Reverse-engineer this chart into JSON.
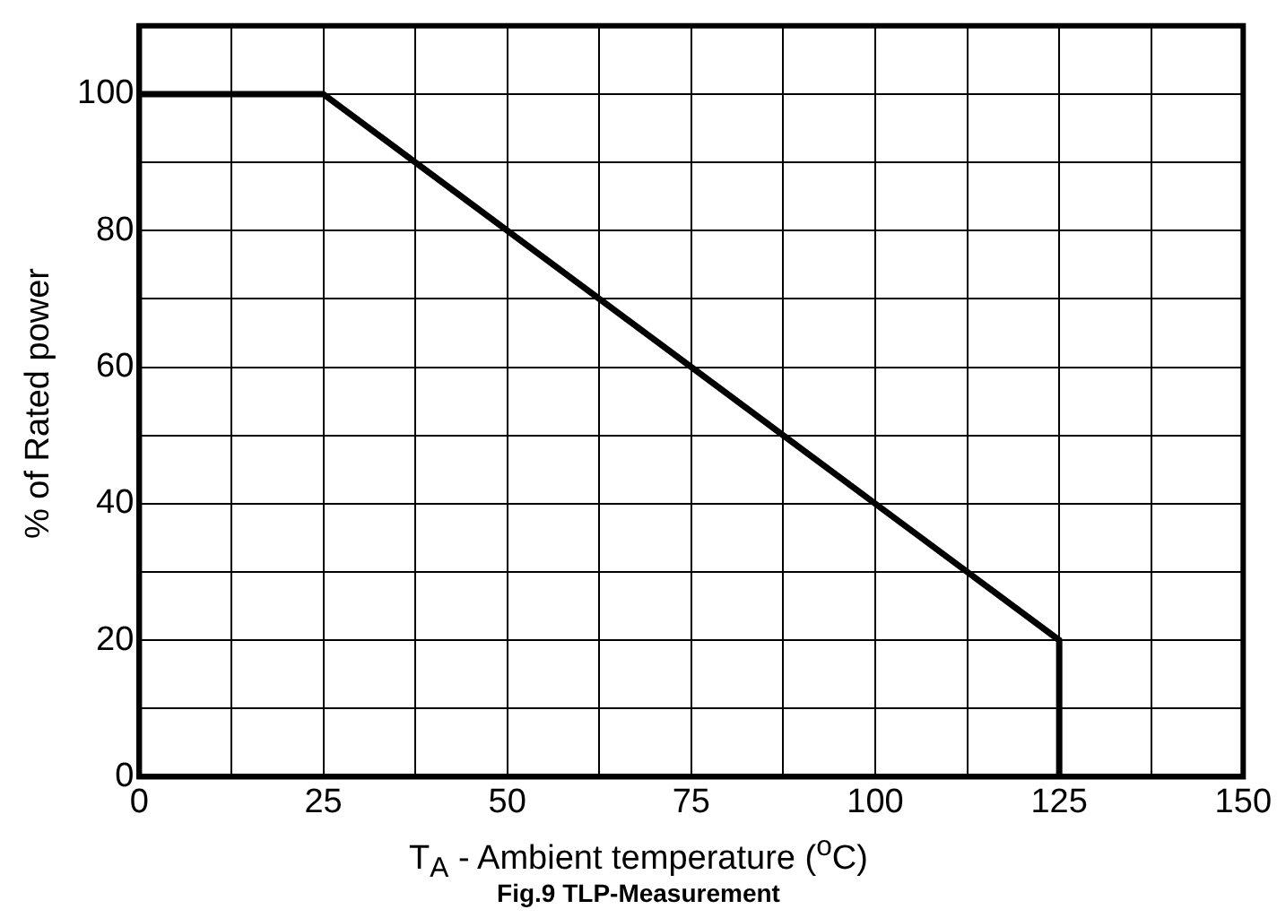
{
  "chart_data": {
    "type": "line",
    "xlabel": "T$_{A}$ - Ambient temperature ($^{o}$C)",
    "ylabel": "% of Rated power",
    "annotations": [
      "Fig.9 TLP-Measurement"
    ],
    "x": [
      0,
      25,
      125,
      125
    ],
    "series": [
      {
        "color": "#000000",
        "values": [
          100,
          100,
          20,
          0
        ]
      }
    ],
    "xlim": [
      0,
      150
    ],
    "xticks": [
      0,
      {
        "value": 12.5,
        "label": null
      },
      25,
      {
        "value": 37.5,
        "label": null
      },
      50,
      {
        "value": 62.5,
        "label": null
      },
      75,
      {
        "value": 87.5,
        "label": null
      },
      100,
      {
        "value": 112.5,
        "label": null
      },
      125,
      {
        "value": 137.5,
        "label": null
      },
      150
    ],
    "ylim": [
      0,
      110
    ],
    "yticks": [
      0,
      {
        "value": 10,
        "label": null
      },
      20,
      {
        "value": 30,
        "label": null
      },
      40,
      {
        "value": 50,
        "label": null
      },
      60,
      {
        "value": 70,
        "label": null
      },
      80,
      {
        "value": 90,
        "label": null
      },
      100,
      {
        "value": 110,
        "label": null
      }
    ],
    "grid": true,
    "legend": false,
    "marker": "none",
    "line_style": "solid"
  }
}
